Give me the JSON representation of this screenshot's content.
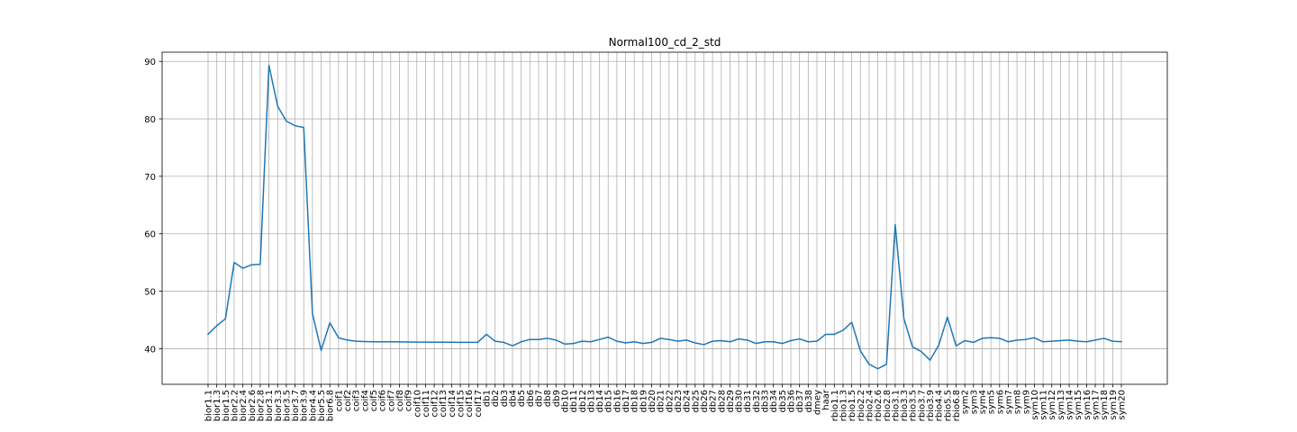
{
  "chart_data": {
    "type": "line",
    "title": "Normal100_cd_2_std",
    "xlabel": "",
    "ylabel": "",
    "ylim": [
      33.8,
      91.6
    ],
    "yticks": [
      40,
      50,
      60,
      70,
      80,
      90
    ],
    "grid": true,
    "colors": {
      "series": "#1f77b4"
    },
    "categories": [
      "bior1.1",
      "bior1.3",
      "bior1.5",
      "bior2.2",
      "bior2.4",
      "bior2.6",
      "bior2.8",
      "bior3.1",
      "bior3.3",
      "bior3.5",
      "bior3.7",
      "bior3.9",
      "bior4.4",
      "bior5.5",
      "bior6.8",
      "coif1",
      "coif2",
      "coif3",
      "coif4",
      "coif5",
      "coif6",
      "coif7",
      "coif8",
      "coif9",
      "coif10",
      "coif11",
      "coif12",
      "coif13",
      "coif14",
      "coif15",
      "coif16",
      "coif17",
      "db1",
      "db2",
      "db3",
      "db4",
      "db5",
      "db6",
      "db7",
      "db8",
      "db9",
      "db10",
      "db11",
      "db12",
      "db13",
      "db14",
      "db15",
      "db16",
      "db17",
      "db18",
      "db19",
      "db20",
      "db21",
      "db22",
      "db23",
      "db24",
      "db25",
      "db26",
      "db27",
      "db28",
      "db29",
      "db30",
      "db31",
      "db32",
      "db33",
      "db34",
      "db35",
      "db36",
      "db37",
      "db38",
      "dmey",
      "haar",
      "rbio1.1",
      "rbio1.3",
      "rbio1.5",
      "rbio2.2",
      "rbio2.4",
      "rbio2.6",
      "rbio2.8",
      "rbio3.1",
      "rbio3.3",
      "rbio3.5",
      "rbio3.7",
      "rbio3.9",
      "rbio4.4",
      "rbio5.5",
      "rbio6.8",
      "sym2",
      "sym3",
      "sym4",
      "sym5",
      "sym6",
      "sym7",
      "sym8",
      "sym9",
      "sym10",
      "sym11",
      "sym12",
      "sym13",
      "sym14",
      "sym15",
      "sym16",
      "sym17",
      "sym18",
      "sym19",
      "sym20"
    ],
    "series": [
      {
        "values": [
          42.5,
          44.0,
          45.2,
          55.0,
          54.0,
          54.6,
          54.7,
          89.3,
          82.2,
          79.6,
          78.8,
          78.5,
          46.1,
          39.7,
          44.5,
          41.9,
          41.5,
          41.3,
          41.25,
          41.2,
          41.2,
          41.2,
          41.18,
          41.17,
          41.15,
          41.15,
          41.13,
          41.12,
          41.12,
          41.1,
          41.1,
          41.1,
          42.5,
          41.3,
          41.1,
          40.5,
          41.2,
          41.6,
          41.6,
          41.8,
          41.5,
          40.8,
          40.9,
          41.3,
          41.2,
          41.6,
          42.0,
          41.3,
          41.0,
          41.2,
          40.9,
          41.1,
          41.8,
          41.6,
          41.3,
          41.5,
          41.0,
          40.7,
          41.3,
          41.4,
          41.2,
          41.7,
          41.5,
          40.9,
          41.2,
          41.2,
          40.9,
          41.4,
          41.7,
          41.2,
          41.3,
          42.5,
          42.5,
          43.2,
          44.6,
          39.6,
          37.3,
          36.5,
          37.3,
          61.6,
          45.2,
          40.3,
          39.5,
          38.0,
          40.6,
          45.5,
          40.5,
          41.4,
          41.1,
          41.8,
          41.9,
          41.8,
          41.2,
          41.5,
          41.6,
          41.9,
          41.2,
          41.3,
          41.4,
          41.5,
          41.3,
          41.2,
          41.5,
          41.8,
          41.3,
          41.2
        ]
      }
    ]
  }
}
